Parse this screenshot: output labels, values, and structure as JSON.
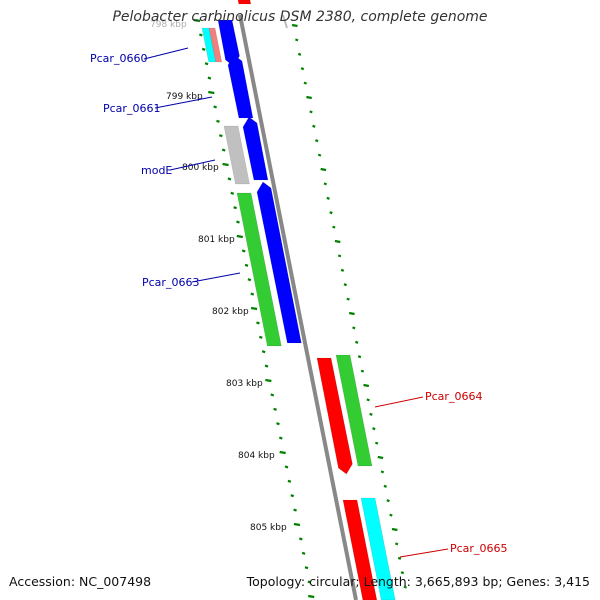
{
  "title": "Pelobacter carbinolicus DSM 2380, complete genome",
  "footer": {
    "accession": "Accession: NC_007498",
    "stats": "Topology: circular; Length: 3,665,893 bp; Genes: 3,415"
  },
  "colors": {
    "backbone": "#808080",
    "blue": "#0000ff",
    "green": "#33cc33",
    "red": "#ff0000",
    "cyan": "#00ffff",
    "gray": "#c0c0c0",
    "pink": "#f08080",
    "tick": "#008000",
    "label_left": "#0000aa",
    "label_right": "#cc0000"
  },
  "scale_labels": [
    "798 kbp",
    "799 kbp",
    "800 kbp",
    "801 kbp",
    "802 kbp",
    "803 kbp",
    "804 kbp",
    "805 kbp"
  ],
  "gene_labels_left": [
    "Pcar_0660",
    "Pcar_0661",
    "modE",
    "Pcar_0663"
  ],
  "gene_labels_right": [
    "Pcar_0664",
    "Pcar_0665"
  ]
}
